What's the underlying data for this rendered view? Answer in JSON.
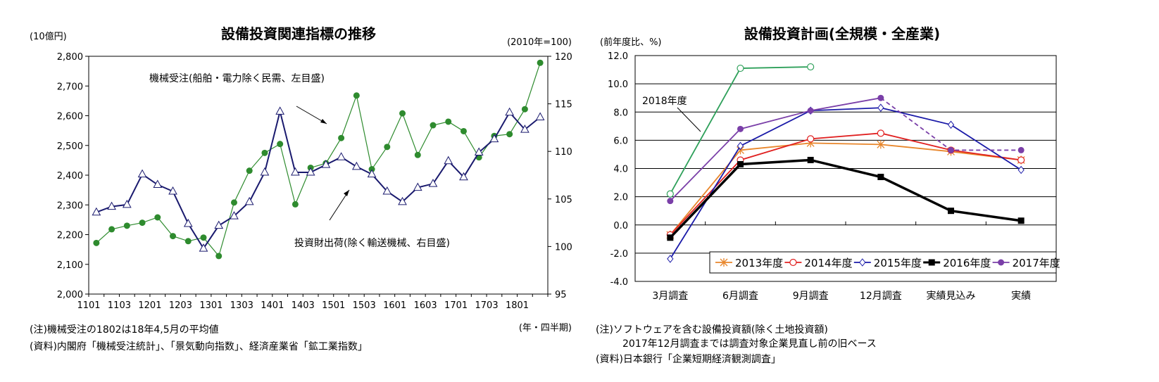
{
  "left": {
    "title": "設備投資関連指標の推移",
    "left_unit": "(10億円)",
    "right_unit": "(2010年=100)",
    "x_unit": "(年・四半期)",
    "annotation_orders": "機械受注(船舶・電力除く民需、左目盛)",
    "annotation_shipments": "投資財出荷(除く輸送機械、右目盛)",
    "note": "(注)機械受注の1802は18年4,5月の平均値",
    "source": "(資料)内閣府「機械受注統計」、「景気動向指数」、経済産業省「鉱工業指数」"
  },
  "right": {
    "title": "設備投資計画(全規模・全産業)",
    "y_unit": "(前年度比、%)",
    "annotation_2018": "2018年度",
    "note1": "(注)ソフトウェアを含む設備投資額(除く土地投資額)",
    "note2": "2017年12月調査までは調査対象企業見直し前の旧ベース",
    "source": "(資料)日本銀行「企業短期経済観測調査」"
  },
  "chart_data": [
    {
      "type": "line",
      "title": "設備投資関連指標の推移",
      "x": [
        "1101",
        "1102",
        "1103",
        "1104",
        "1201",
        "1202",
        "1203",
        "1204",
        "1301",
        "1302",
        "1303",
        "1304",
        "1401",
        "1402",
        "1403",
        "1404",
        "1501",
        "1502",
        "1503",
        "1504",
        "1601",
        "1602",
        "1603",
        "1604",
        "1701",
        "1702",
        "1703",
        "1704",
        "1801",
        "1802"
      ],
      "x_tick_labels": [
        "1101",
        "1103",
        "1201",
        "1203",
        "1301",
        "1303",
        "1401",
        "1403",
        "1501",
        "1503",
        "1601",
        "1603",
        "1701",
        "1703",
        "1801"
      ],
      "ylim_left": [
        2000,
        2800
      ],
      "y_ticks_left": [
        "2,000",
        "2,100",
        "2,200",
        "2,300",
        "2,400",
        "2,500",
        "2,600",
        "2,700",
        "2,800"
      ],
      "ylim_right": [
        95,
        120
      ],
      "y_ticks_right": [
        "95",
        "100",
        "105",
        "110",
        "115",
        "120"
      ],
      "series": [
        {
          "name": "機械受注(船舶・電力除く民需、左目盛)",
          "axis": "left",
          "color": "#2e8b2e",
          "marker": "filled-circle",
          "values": [
            2172,
            2218,
            2230,
            2240,
            2258,
            2195,
            2178,
            2190,
            2128,
            2308,
            2415,
            2475,
            2505,
            2302,
            2425,
            2440,
            2525,
            2668,
            2420,
            2495,
            2608,
            2468,
            2568,
            2580,
            2548,
            2460,
            2532,
            2538,
            2622,
            2778
          ]
        },
        {
          "name": "投資財出荷(除く輸送機械、右目盛)",
          "axis": "right",
          "color": "#1a1a6e",
          "marker": "open-triangle",
          "values": [
            103.6,
            104.2,
            104.4,
            107.6,
            106.5,
            105.8,
            102.4,
            99.8,
            102.2,
            103.2,
            104.7,
            107.8,
            114.2,
            107.8,
            107.8,
            108.6,
            109.4,
            108.4,
            107.6,
            105.8,
            104.7,
            106.2,
            106.6,
            109.0,
            107.3,
            109.9,
            111.3,
            114.1,
            112.3,
            113.6
          ]
        }
      ]
    },
    {
      "type": "line",
      "title": "設備投資計画(全規模・全産業)",
      "ylabel": "(前年度比、%)",
      "categories": [
        "3月調査",
        "6月調査",
        "9月調査",
        "12月調査",
        "実績見込み",
        "実績"
      ],
      "ylim": [
        -4.0,
        12.0
      ],
      "y_ticks": [
        "-4.0",
        "-2.0",
        "0.0",
        "2.0",
        "4.0",
        "6.0",
        "8.0",
        "10.0",
        "12.0"
      ],
      "legend_position": "bottom-right",
      "series": [
        {
          "name": "2013年度",
          "color": "#e8862b",
          "marker": "asterisk",
          "values": [
            -0.7,
            5.3,
            5.8,
            5.7,
            5.2,
            4.6
          ]
        },
        {
          "name": "2014年度",
          "color": "#e02020",
          "marker": "open-circle",
          "values": [
            -0.7,
            4.6,
            6.1,
            6.5,
            5.3,
            4.6
          ]
        },
        {
          "name": "2015年度",
          "color": "#1a1aa8",
          "marker": "open-diamond",
          "values": [
            -2.4,
            5.6,
            8.1,
            8.3,
            7.1,
            3.9
          ]
        },
        {
          "name": "2016年度",
          "color": "#000000",
          "marker": "filled-square",
          "values": [
            -0.9,
            4.3,
            4.6,
            3.4,
            1.0,
            0.3
          ]
        },
        {
          "name": "2017年度",
          "color": "#7a3fa8",
          "marker": "filled-circle",
          "values": [
            1.7,
            6.8,
            8.1,
            9.0,
            5.3,
            5.3
          ],
          "dashed_from_index": 3
        },
        {
          "name": "2018年度",
          "color": "#2ea05a",
          "marker": "open-circle",
          "values": [
            2.2,
            11.1,
            11.2,
            null,
            null,
            null
          ]
        }
      ]
    }
  ]
}
